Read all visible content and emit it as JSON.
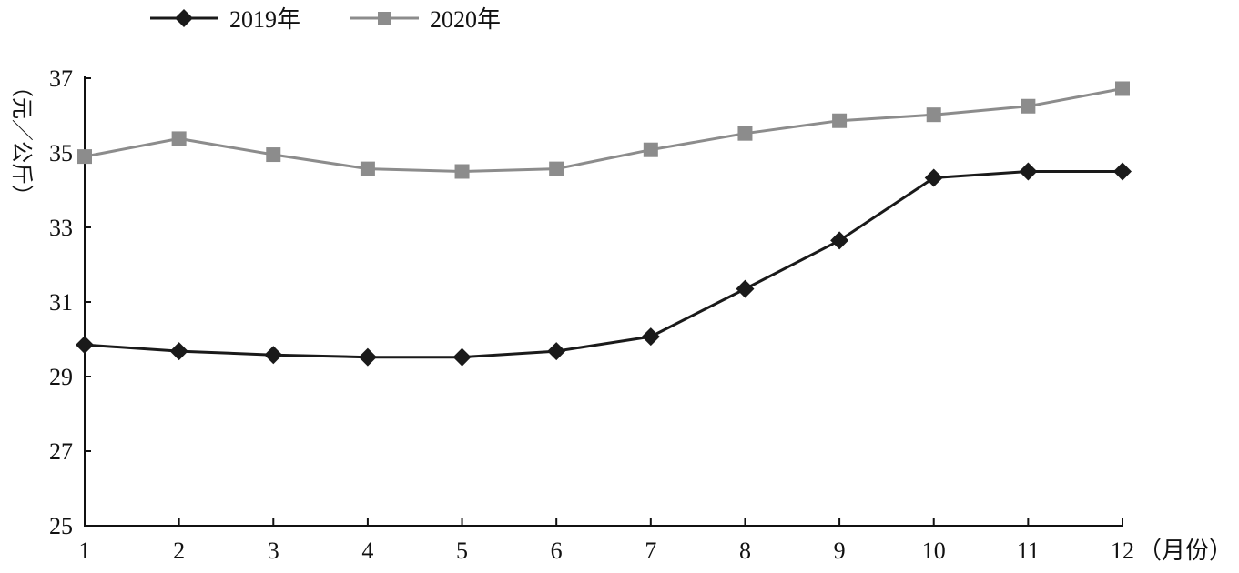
{
  "chart_data": {
    "type": "line",
    "title": "",
    "xlabel": "（月份）",
    "ylabel": "（元／公斤）",
    "categories": [
      "1",
      "2",
      "3",
      "4",
      "5",
      "6",
      "7",
      "8",
      "9",
      "10",
      "11",
      "12"
    ],
    "x_tick_labels": [
      "1",
      "2",
      "3",
      "4",
      "5",
      "6",
      "7",
      "8",
      "9",
      "10",
      "11",
      "12"
    ],
    "y_tick_labels": [
      "25",
      "27",
      "29",
      "31",
      "33",
      "35",
      "37"
    ],
    "ylim": [
      25,
      37
    ],
    "y_ticks": [
      25,
      27,
      29,
      31,
      33,
      35,
      37
    ],
    "grid": false,
    "legend_position": "top-left",
    "series": [
      {
        "name": "2019年",
        "color": "#1a1a1a",
        "marker": "diamond",
        "values": [
          29.85,
          29.68,
          29.58,
          29.52,
          29.52,
          29.68,
          30.07,
          31.35,
          32.65,
          34.33,
          34.5,
          34.5
        ]
      },
      {
        "name": "2020年",
        "color": "#8c8c8c",
        "marker": "square",
        "values": [
          34.9,
          35.38,
          34.95,
          34.57,
          34.5,
          34.57,
          35.08,
          35.52,
          35.86,
          36.02,
          36.25,
          36.72
        ]
      }
    ]
  }
}
